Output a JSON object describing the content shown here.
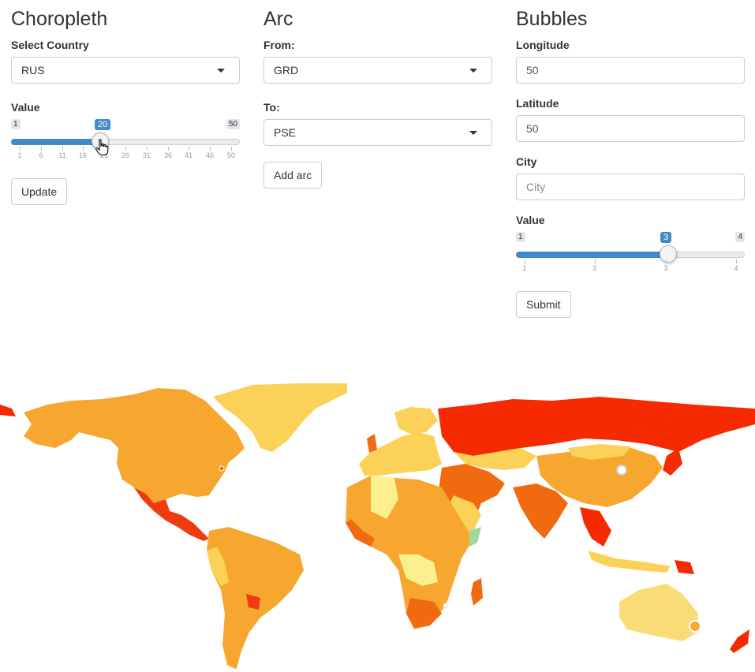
{
  "choropleth": {
    "title": "Choropleth",
    "country_label": "Select Country",
    "country_value": "RUS",
    "value_label": "Value",
    "slider": {
      "min": "1",
      "max": "50",
      "value": "20",
      "fraction": 0.388,
      "grid": [
        "1",
        "6",
        "11",
        "16",
        "21",
        "26",
        "31",
        "36",
        "41",
        "46",
        "50"
      ]
    },
    "update_button": "Update"
  },
  "arc": {
    "title": "Arc",
    "from_label": "From:",
    "from_value": "GRD",
    "to_label": "To:",
    "to_value": "PSE",
    "add_button": "Add arc"
  },
  "bubbles": {
    "title": "Bubbles",
    "longitude_label": "Longitude",
    "longitude_value": "50",
    "latitude_label": "Latitude",
    "latitude_value": "50",
    "city_label": "City",
    "city_placeholder": "City",
    "value_label": "Value",
    "slider": {
      "min": "1",
      "max": "4",
      "value": "3",
      "fraction": 0.667,
      "grid": [
        "1",
        "2",
        "3",
        "4"
      ]
    },
    "submit_button": "Submit"
  },
  "colors": {
    "slider_fill": "#428bca",
    "russia_red": "#f52a00",
    "orange": "#f7a72f",
    "dark_orange": "#f06a10",
    "pale_yellow": "#f9dc77",
    "light_yellow": "#faf08e"
  },
  "icons": {
    "cursor": "hand-pointer-icon",
    "dropdown": "caret-down-icon"
  }
}
